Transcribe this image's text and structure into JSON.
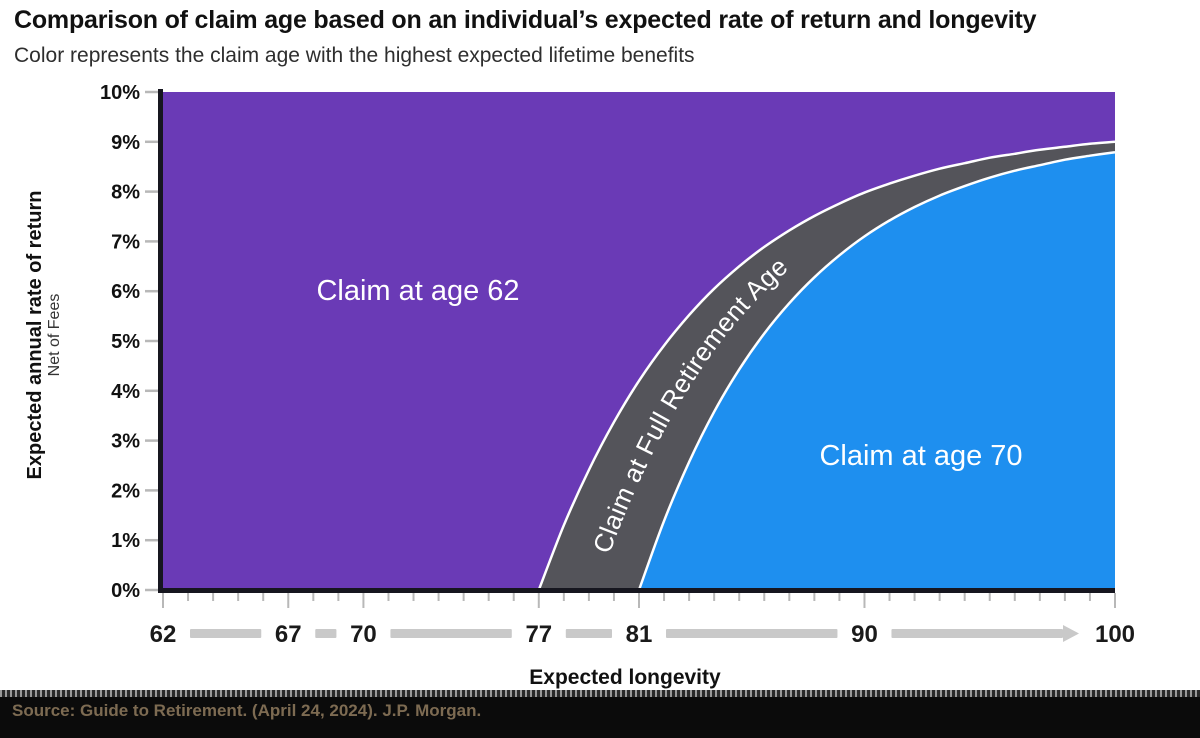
{
  "title": "Comparison of claim age based on an individual’s expected rate of return and longevity",
  "subtitle": "Color represents the claim age with the highest expected lifetime benefits",
  "source": "Source: Guide to Retirement. (April 24, 2024). J.P. Morgan.",
  "chart_data": {
    "type": "area",
    "xlabel": "Expected longevity",
    "ylabel": "Expected annual rate of return",
    "ylabel_sub": "Net of Fees",
    "x_range": [
      62,
      100
    ],
    "y_range": [
      0,
      10
    ],
    "x_ticks": [
      62,
      67,
      70,
      77,
      81,
      90,
      100
    ],
    "y_ticks": [
      {
        "value": 0,
        "label": "0%"
      },
      {
        "value": 1,
        "label": "1%"
      },
      {
        "value": 2,
        "label": "2%"
      },
      {
        "value": 3,
        "label": "3%"
      },
      {
        "value": 4,
        "label": "4%"
      },
      {
        "value": 5,
        "label": "5%"
      },
      {
        "value": 6,
        "label": "6%"
      },
      {
        "value": 7,
        "label": "7%"
      },
      {
        "value": 8,
        "label": "8%"
      },
      {
        "value": 9,
        "label": "9%"
      },
      {
        "value": 10,
        "label": "10%"
      }
    ],
    "x_ruler": {
      "segments_between_ticks": true,
      "arrow_on_last_segment": true,
      "bar_color": "#c9c9c9"
    },
    "regions": [
      {
        "label": "Claim at age 62",
        "color": "#6a3ab6"
      },
      {
        "label": "Claim at Full Retirement Age",
        "color": "#54545a"
      },
      {
        "label": "Claim at age 70",
        "color": "#1e8fef"
      }
    ],
    "edge_line_color": "#ffffff",
    "axis_color": "#16161f",
    "tick_color": "#b8b8b8",
    "boundaries": [
      {
        "name": "claim62-vs-fra-breakeven",
        "points": [
          [
            77,
            0
          ],
          [
            78,
            1.3
          ],
          [
            79,
            2.41
          ],
          [
            80,
            3.37
          ],
          [
            81,
            4.2
          ],
          [
            82,
            4.91
          ],
          [
            83,
            5.52
          ],
          [
            84,
            6.05
          ],
          [
            85,
            6.5
          ],
          [
            86,
            6.89
          ],
          [
            87,
            7.22
          ],
          [
            88,
            7.51
          ],
          [
            89,
            7.76
          ],
          [
            90,
            7.98
          ],
          [
            91,
            8.16
          ],
          [
            92,
            8.32
          ],
          [
            93,
            8.46
          ],
          [
            94,
            8.57
          ],
          [
            95,
            8.68
          ],
          [
            96,
            8.76
          ],
          [
            97,
            8.84
          ],
          [
            98,
            8.9
          ],
          [
            99,
            8.96
          ],
          [
            100,
            9.0
          ]
        ]
      },
      {
        "name": "fra-vs-claim70-breakeven",
        "points": [
          [
            81,
            0
          ],
          [
            82,
            1.39
          ],
          [
            83,
            2.57
          ],
          [
            84,
            3.58
          ],
          [
            85,
            4.43
          ],
          [
            86,
            5.15
          ],
          [
            87,
            5.76
          ],
          [
            88,
            6.28
          ],
          [
            89,
            6.72
          ],
          [
            90,
            7.1
          ],
          [
            91,
            7.42
          ],
          [
            92,
            7.69
          ],
          [
            93,
            7.92
          ],
          [
            94,
            8.11
          ],
          [
            95,
            8.28
          ],
          [
            96,
            8.42
          ],
          [
            97,
            8.53
          ],
          [
            98,
            8.64
          ],
          [
            99,
            8.72
          ],
          [
            100,
            8.79
          ]
        ]
      }
    ],
    "band_centerline": [
      [
        79,
        0
      ],
      [
        80,
        1.34
      ],
      [
        81,
        2.49
      ],
      [
        82,
        3.48
      ],
      [
        83,
        4.31
      ],
      [
        84,
        5.03
      ],
      [
        85,
        5.64
      ],
      [
        86,
        6.17
      ],
      [
        87,
        6.62
      ],
      [
        88,
        7.0
      ],
      [
        89,
        7.33
      ],
      [
        90,
        7.61
      ],
      [
        91,
        7.84
      ],
      [
        92,
        8.05
      ],
      [
        93,
        8.22
      ],
      [
        94,
        8.37
      ],
      [
        95,
        8.5
      ],
      [
        96,
        8.61
      ],
      [
        97,
        8.7
      ],
      [
        98,
        8.78
      ],
      [
        99,
        8.85
      ],
      [
        100,
        8.91
      ]
    ]
  }
}
